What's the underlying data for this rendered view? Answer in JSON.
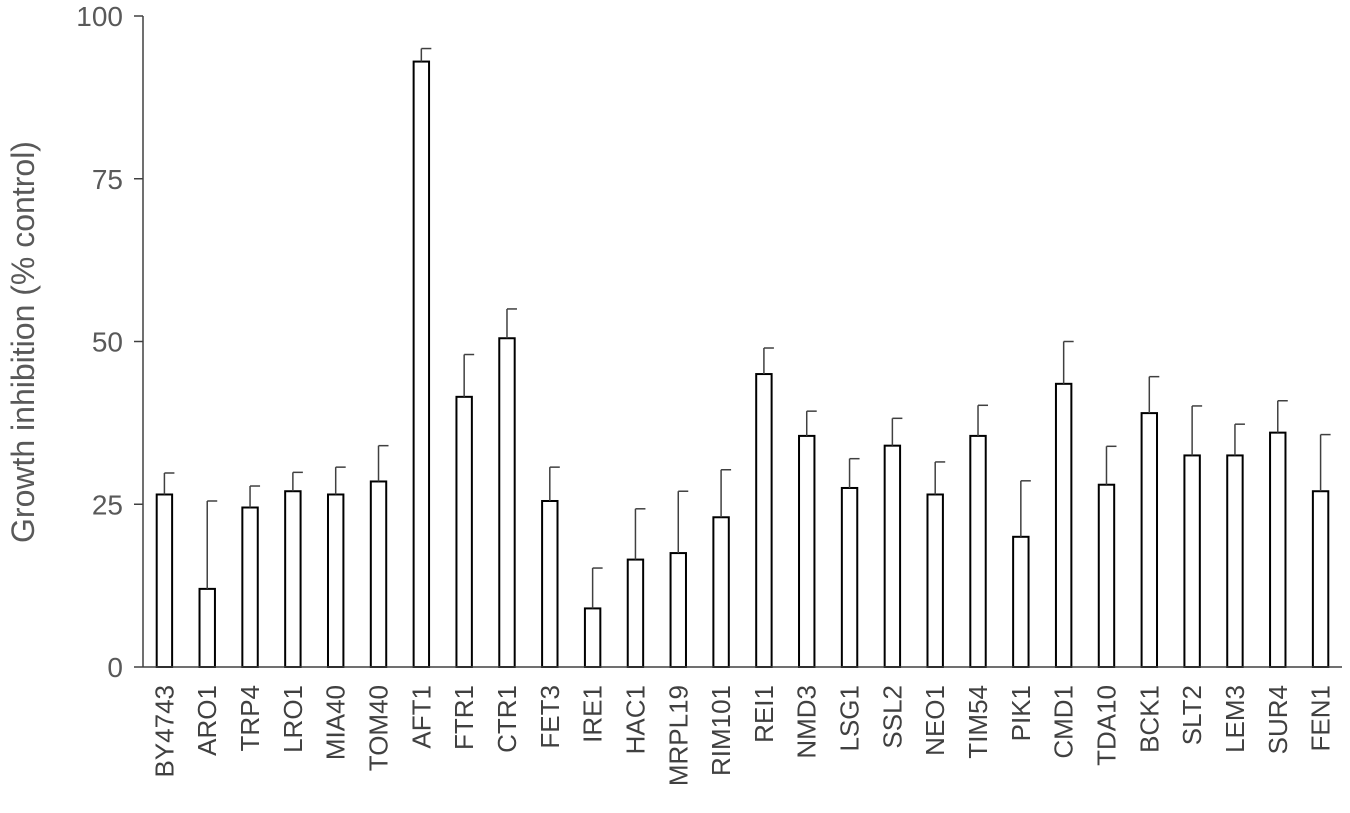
{
  "chart_data": {
    "type": "bar",
    "title": "",
    "xlabel": "",
    "ylabel": "Growth inhibition (% control)",
    "ylim": [
      0,
      100
    ],
    "yticks": [
      0,
      25,
      50,
      75,
      100
    ],
    "grid": false,
    "legend": "none",
    "bar_fill": "#ffffff",
    "bar_stroke": "#000000",
    "errorbar_color": "#404040",
    "axis_color": "#404040",
    "categories": [
      "BY4743",
      "ARO1",
      "TRP4",
      "LRO1",
      "MIA40",
      "TOM40",
      "AFT1",
      "FTR1",
      "CTR1",
      "FET3",
      "IRE1",
      "HAC1",
      "MRPL19",
      "RIM101",
      "REI1",
      "NMD3",
      "LSG1",
      "SSL2",
      "NEO1",
      "TIM54",
      "PIK1",
      "CMD1",
      "TDA10",
      "BCK1",
      "SLT2",
      "LEM3",
      "SUR4",
      "FEN1"
    ],
    "values": [
      26.5,
      12.0,
      24.5,
      27.0,
      26.5,
      28.5,
      93.0,
      41.5,
      50.5,
      25.5,
      9.0,
      16.5,
      17.5,
      23.0,
      45.0,
      35.5,
      27.5,
      34.0,
      26.5,
      35.5,
      20.0,
      43.5,
      28.0,
      39.0,
      32.5,
      32.5,
      36.0,
      27.0
    ],
    "errors": [
      3.3,
      13.5,
      3.3,
      2.9,
      4.2,
      5.5,
      2.0,
      6.5,
      4.5,
      5.2,
      6.2,
      7.8,
      9.5,
      7.3,
      4.0,
      3.8,
      4.5,
      4.2,
      5.0,
      4.7,
      8.6,
      6.5,
      5.9,
      5.6,
      7.6,
      4.8,
      4.9,
      8.7
    ]
  }
}
